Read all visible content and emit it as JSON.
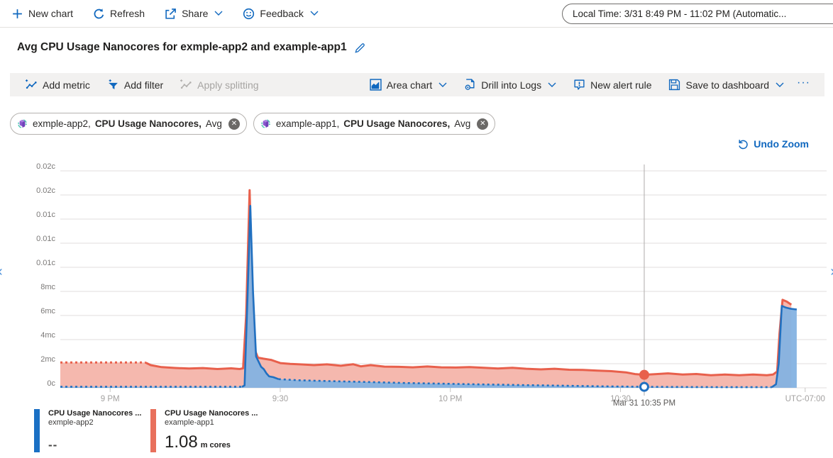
{
  "top_bar": {
    "items": [
      {
        "label": "New chart",
        "icon": "plus-icon"
      },
      {
        "label": "Refresh",
        "icon": "refresh-icon"
      },
      {
        "label": "Share",
        "icon": "share-icon",
        "dropdown": true
      },
      {
        "label": "Feedback",
        "icon": "smiley-icon",
        "dropdown": true
      }
    ],
    "time_range": "Local Time: 3/31 8:49 PM - 11:02 PM (Automatic..."
  },
  "title": "Avg CPU Usage Nanocores for exmple-app2 and example-app1",
  "title_edit_icon": "pencil-icon",
  "toolbar": {
    "left": [
      {
        "label": "Add metric",
        "icon": "add-metric-icon",
        "disabled": false
      },
      {
        "label": "Add filter",
        "icon": "add-filter-icon",
        "disabled": false
      },
      {
        "label": "Apply splitting",
        "icon": "apply-splitting-icon",
        "disabled": true
      }
    ],
    "right": [
      {
        "label": "Area chart",
        "icon": "area-chart-icon",
        "dropdown": true
      },
      {
        "label": "Drill into Logs",
        "icon": "drill-logs-icon",
        "dropdown": true
      },
      {
        "label": "New alert rule",
        "icon": "alert-icon",
        "dropdown": false
      },
      {
        "label": "Save to dashboard",
        "icon": "save-icon",
        "dropdown": true
      },
      {
        "label": "···",
        "icon": "ellipsis-icon",
        "dropdown": false
      }
    ]
  },
  "metric_pills": [
    {
      "resource": "exmple-app2,",
      "metric": "CPU Usage Nanocores,",
      "aggregation": "Avg",
      "icon": "container-app-icon",
      "close_icon": "close-icon",
      "close_glyph": "✕"
    },
    {
      "resource": "example-app1,",
      "metric": "CPU Usage Nanocores,",
      "aggregation": "Avg",
      "icon": "container-app-icon",
      "close_icon": "close-icon",
      "close_glyph": "✕"
    }
  ],
  "undo_zoom_label": "Undo Zoom",
  "edge_nav": {
    "left": "‹",
    "right": "›"
  },
  "chart_data": {
    "type": "area",
    "title": "Avg CPU Usage Nanocores",
    "ylabel": "cores",
    "y_unit": "millicores",
    "ylim_mc": [
      0,
      18.5
    ],
    "grid": true,
    "legend_position": "bottom",
    "y_ticks": [
      {
        "v": 0,
        "label": "0c"
      },
      {
        "v": 2,
        "label": "2mc"
      },
      {
        "v": 4,
        "label": "4mc"
      },
      {
        "v": 6,
        "label": "6mc"
      },
      {
        "v": 8,
        "label": "8mc"
      },
      {
        "v": 10,
        "label": "0.01c"
      },
      {
        "v": 12,
        "label": "0.01c"
      },
      {
        "v": 14,
        "label": "0.01c"
      },
      {
        "v": 16,
        "label": "0.02c"
      },
      {
        "v": 18,
        "label": "0.02c"
      }
    ],
    "x_ticks": [
      {
        "f": 0.065,
        "label": "9 PM"
      },
      {
        "f": 0.287,
        "label": "9:30"
      },
      {
        "f": 0.509,
        "label": "10 PM"
      },
      {
        "f": 0.731,
        "label": "10:30"
      },
      {
        "f": 0.972,
        "label": "UTC-07:00"
      }
    ],
    "crosshair": {
      "f": 0.762,
      "label": "Mar 31 10:35 PM"
    },
    "series": [
      {
        "name": "exmple-app2",
        "metric": "CPU Usage Nanocores",
        "aggregation": "Avg",
        "line_color": "#2170c0",
        "fill_color": "#84b2e2",
        "fill_opacity": 0.95,
        "line_width": 2.6,
        "markers": [
          {
            "f": 0.762,
            "v": 0.08,
            "style": "ring"
          }
        ],
        "segments": [
          {
            "style": "dotted",
            "points": [
              [
                0,
                0.08
              ],
              [
                0.237,
                0.08
              ]
            ]
          },
          {
            "style": "solid",
            "points": [
              [
                0.237,
                0.08
              ],
              [
                0.2405,
                0.2
              ],
              [
                0.2445,
                8
              ],
              [
                0.248,
                15.1
              ],
              [
                0.2515,
                8
              ],
              [
                0.2555,
                2.6
              ],
              [
                0.262,
                1.74
              ],
              [
                0.2655,
                1.55
              ],
              [
                0.269,
                1.2
              ],
              [
                0.2725,
                0.95
              ],
              [
                0.278,
                0.88
              ],
              [
                0.285,
                0.72
              ]
            ]
          },
          {
            "style": "dotted",
            "points": [
              [
                0.285,
                0.72
              ],
              [
                0.31,
                0.63
              ],
              [
                0.35,
                0.56
              ],
              [
                0.4,
                0.48
              ],
              [
                0.45,
                0.4
              ],
              [
                0.5,
                0.34
              ],
              [
                0.55,
                0.28
              ],
              [
                0.6,
                0.23
              ],
              [
                0.65,
                0.18
              ],
              [
                0.7,
                0.13
              ],
              [
                0.74,
                0.1
              ],
              [
                0.762,
                0.08
              ],
              [
                0.8,
                0.07
              ],
              [
                0.85,
                0.06
              ],
              [
                0.9,
                0.05
              ],
              [
                0.9285,
                0.05
              ]
            ]
          },
          {
            "style": "solid",
            "points": [
              [
                0.9285,
                0.05
              ],
              [
                0.934,
                0.3
              ],
              [
                0.9375,
                2
              ],
              [
                0.9415,
                6.8
              ],
              [
                0.947,
                6.65
              ],
              [
                0.9535,
                6.55
              ],
              [
                0.961,
                6.5
              ]
            ]
          }
        ]
      },
      {
        "name": "example-app1",
        "metric": "CPU Usage Nanocores",
        "aggregation": "Avg",
        "line_color": "#e8604c",
        "fill_color": "#f4b4aa",
        "fill_opacity": 0.95,
        "line_width": 3,
        "markers": [
          {
            "f": 0.762,
            "v": 1.08,
            "style": "dot"
          }
        ],
        "segments": [
          {
            "style": "dotted",
            "points": [
              [
                0,
                2.1
              ],
              [
                0.111,
                2.1
              ]
            ]
          },
          {
            "style": "solid",
            "points": [
              [
                0.111,
                2.1
              ],
              [
                0.118,
                1.88
              ],
              [
                0.132,
                1.72
              ],
              [
                0.15,
                1.65
              ],
              [
                0.168,
                1.6
              ],
              [
                0.186,
                1.64
              ],
              [
                0.205,
                1.56
              ],
              [
                0.223,
                1.62
              ],
              [
                0.234,
                1.56
              ],
              [
                0.2385,
                1.62
              ],
              [
                0.2425,
                6
              ],
              [
                0.247,
                16.4
              ],
              [
                0.2505,
                8
              ],
              [
                0.2535,
                3.2
              ],
              [
                0.258,
                2.5
              ],
              [
                0.265,
                2.42
              ],
              [
                0.275,
                2.32
              ],
              [
                0.287,
                2.05
              ],
              [
                0.3,
                1.98
              ],
              [
                0.315,
                1.94
              ],
              [
                0.331,
                1.88
              ],
              [
                0.348,
                1.95
              ],
              [
                0.366,
                1.83
              ],
              [
                0.382,
                1.96
              ],
              [
                0.392,
                1.78
              ],
              [
                0.405,
                1.88
              ],
              [
                0.423,
                1.76
              ],
              [
                0.442,
                1.74
              ],
              [
                0.46,
                1.7
              ],
              [
                0.479,
                1.77
              ],
              [
                0.497,
                1.7
              ],
              [
                0.516,
                1.68
              ],
              [
                0.534,
                1.72
              ],
              [
                0.553,
                1.66
              ],
              [
                0.571,
                1.6
              ],
              [
                0.59,
                1.66
              ],
              [
                0.608,
                1.58
              ],
              [
                0.627,
                1.53
              ],
              [
                0.645,
                1.58
              ],
              [
                0.664,
                1.5
              ],
              [
                0.682,
                1.48
              ],
              [
                0.701,
                1.43
              ],
              [
                0.719,
                1.38
              ],
              [
                0.738,
                1.28
              ],
              [
                0.75,
                1.14
              ],
              [
                0.762,
                1.08
              ],
              [
                0.776,
                1.13
              ],
              [
                0.793,
                1.2
              ],
              [
                0.812,
                1.1
              ],
              [
                0.83,
                1.15
              ],
              [
                0.849,
                1.04
              ],
              [
                0.867,
                1.1
              ],
              [
                0.886,
                1.04
              ],
              [
                0.904,
                1.1
              ],
              [
                0.922,
                1.04
              ],
              [
                0.93,
                1.1
              ],
              [
                0.9355,
                1.35
              ],
              [
                0.9385,
                4.5
              ],
              [
                0.9425,
                7.3
              ],
              [
                0.948,
                7.15
              ],
              [
                0.954,
                6.9
              ]
            ]
          }
        ]
      }
    ]
  },
  "legend": [
    {
      "metric": "CPU Usage Nanocores ...",
      "resource": "exmple-app2",
      "value": "--",
      "unit": "",
      "color": "#1a70c4"
    },
    {
      "metric": "CPU Usage Nanocores ...",
      "resource": "example-app1",
      "value": "1.08",
      "unit": "m cores",
      "color": "#e8705c"
    }
  ]
}
